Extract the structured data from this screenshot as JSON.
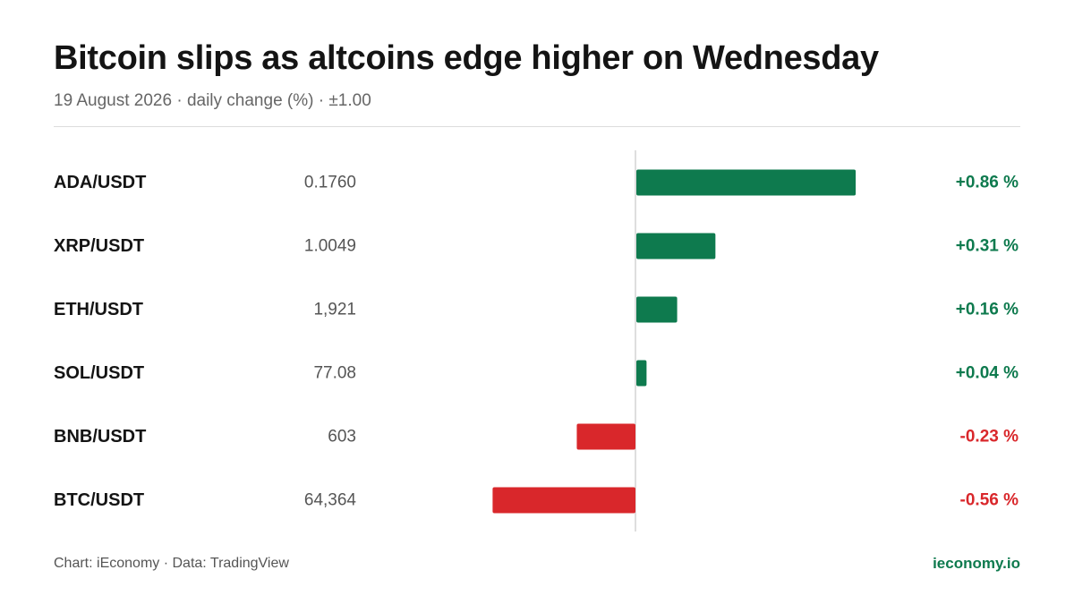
{
  "header": {
    "title": "Bitcoin slips as altcoins edge higher on Wednesday",
    "subtitle": "19 August 2026 · daily change (%) · ±1.00"
  },
  "footer": {
    "source": "Chart: iEconomy · Data: TradingView",
    "brand": "ieconomy.io"
  },
  "colors": {
    "positive": "#0e7a4e",
    "negative": "#d9272b",
    "axis": "#d4d4d4",
    "price": "#555555",
    "brand": "#0e7a4e"
  },
  "chart_data": {
    "type": "bar",
    "orientation": "horizontal",
    "xlim": [
      -1.0,
      1.0
    ],
    "grid": false,
    "categories": [
      "ADA/USDT",
      "XRP/USDT",
      "ETH/USDT",
      "SOL/USDT",
      "BNB/USDT",
      "BTC/USDT"
    ],
    "prices": [
      "0.1760",
      "1.0049",
      "1,921",
      "77.08",
      "603",
      "64,364"
    ],
    "values": [
      0.86,
      0.31,
      0.16,
      0.04,
      -0.23,
      -0.56
    ],
    "value_labels": [
      "+0.86 %",
      "+0.31 %",
      "+0.16 %",
      "+0.04 %",
      "-0.23 %",
      "-0.56 %"
    ]
  }
}
